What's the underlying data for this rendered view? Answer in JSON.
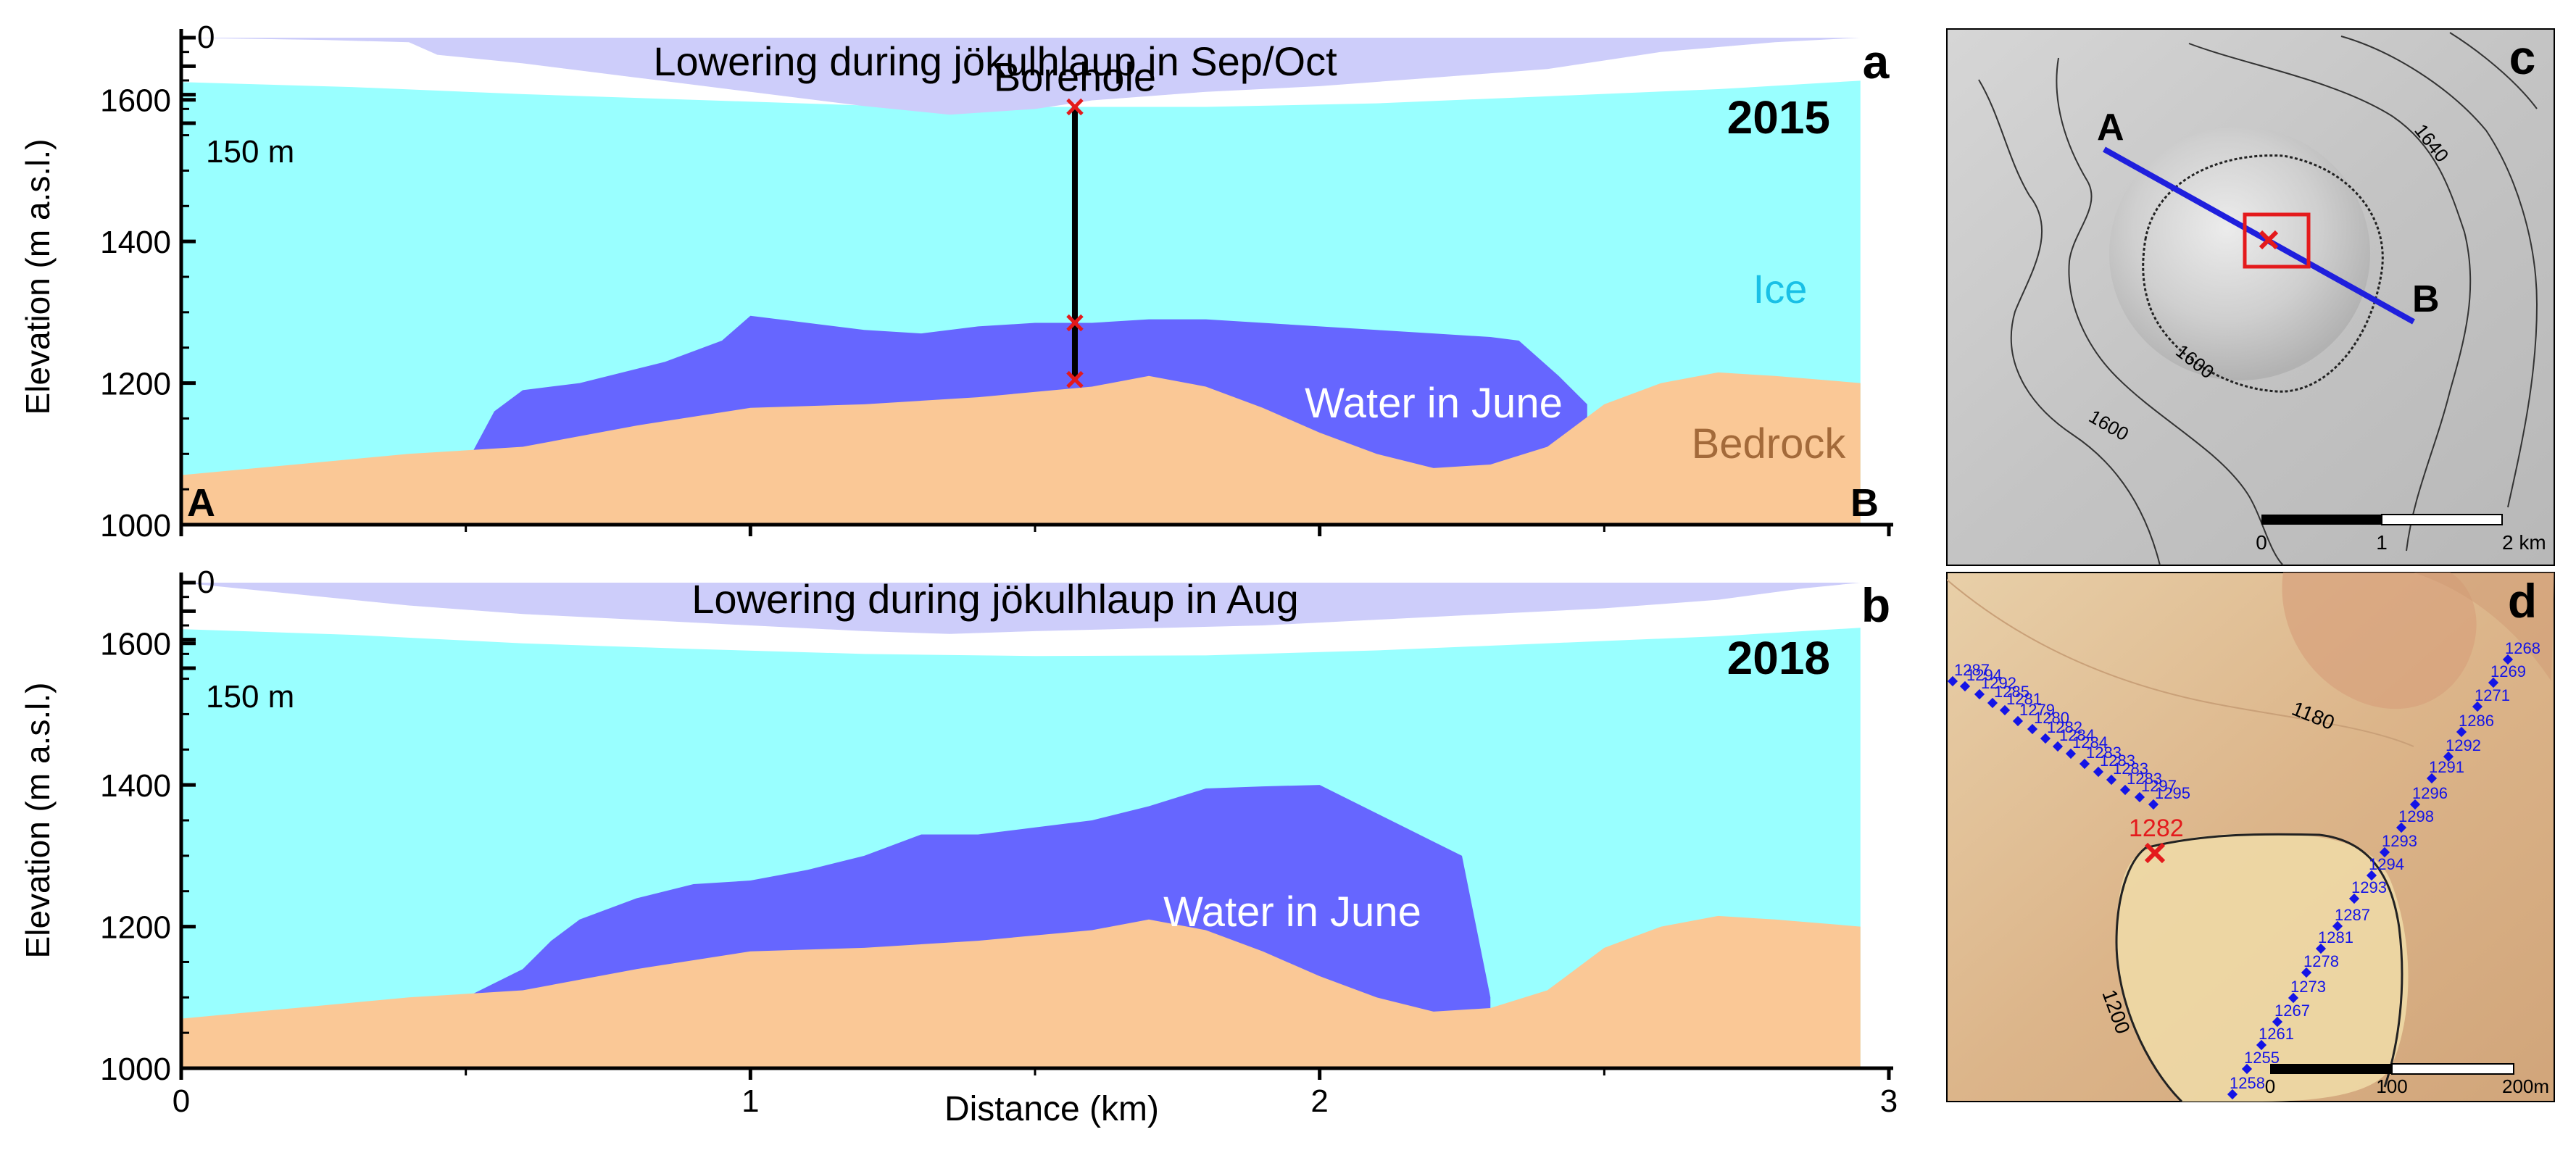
{
  "chart_data": [
    {
      "panel": "a",
      "type": "area",
      "year": "2015",
      "title": "",
      "xlabel": "",
      "ylabel": "Elevation (m a.s.l.)",
      "xlim": [
        0,
        3
      ],
      "ylim": [
        1000,
        1700
      ],
      "x_ticks": [
        "0",
        "1",
        "2",
        "3"
      ],
      "y_ticks": [
        "1000",
        "1200",
        "1400",
        "1600"
      ],
      "lowering_label": "Lowering during jökulhlaup in Sep/Oct",
      "lowering_scale_zero": "0",
      "lowering_scale_label": "150 m",
      "lowering_max_m": 150,
      "lowering": {
        "x": [
          0,
          0.25,
          0.4,
          0.45,
          0.6,
          0.8,
          1.0,
          1.2,
          1.35,
          1.5,
          1.6,
          1.8,
          2.0,
          2.2,
          2.4,
          2.6,
          2.8,
          2.95
        ],
        "depth": [
          0,
          4,
          8,
          30,
          45,
          70,
          95,
          120,
          135,
          125,
          110,
          95,
          85,
          70,
          55,
          25,
          8,
          0
        ]
      },
      "series": [
        {
          "name": "Ice",
          "x": [
            0,
            0.3,
            0.6,
            0.9,
            1.2,
            1.5,
            1.8,
            2.1,
            2.4,
            2.7,
            2.95
          ],
          "values": [
            1625,
            1618,
            1608,
            1600,
            1592,
            1590,
            1590,
            1595,
            1605,
            1615,
            1627
          ]
        },
        {
          "name": "Water in June",
          "x": [
            0.51,
            0.55,
            0.6,
            0.7,
            0.85,
            0.95,
            1.0,
            1.05,
            1.2,
            1.3,
            1.4,
            1.5,
            1.6,
            1.7,
            1.8,
            1.9,
            2.0,
            2.1,
            2.2,
            2.3,
            2.35,
            2.42,
            2.47
          ],
          "values": [
            1100,
            1160,
            1190,
            1200,
            1230,
            1260,
            1295,
            1290,
            1275,
            1270,
            1280,
            1285,
            1285,
            1290,
            1290,
            1285,
            1280,
            1275,
            1270,
            1265,
            1260,
            1210,
            1170
          ]
        },
        {
          "name": "Bedrock",
          "x": [
            0,
            0.2,
            0.4,
            0.6,
            0.8,
            1.0,
            1.2,
            1.4,
            1.6,
            1.7,
            1.8,
            1.9,
            2.0,
            2.1,
            2.2,
            2.3,
            2.4,
            2.5,
            2.6,
            2.7,
            2.8,
            2.95
          ],
          "values": [
            1070,
            1085,
            1100,
            1110,
            1140,
            1165,
            1170,
            1180,
            1195,
            1210,
            1195,
            1165,
            1130,
            1100,
            1080,
            1085,
            1110,
            1170,
            1200,
            1215,
            1210,
            1200
          ]
        }
      ],
      "labels": {
        "ice": "Ice",
        "water": "Water in June",
        "bedrock": "Bedrock",
        "profile_start": "A",
        "profile_end": "B"
      },
      "borehole": {
        "label": "Borehole",
        "x": 1.57,
        "top": 1590,
        "water_top": 1285,
        "bottom": 1205
      },
      "colors": {
        "ice": "#99ffff",
        "water": "#6666ff",
        "bedrock": "#fac896",
        "lowering": "#cdcdfa",
        "marker": "#e41a1c"
      }
    },
    {
      "panel": "b",
      "type": "area",
      "year": "2018",
      "title": "",
      "xlabel": "Distance (km)",
      "ylabel": "Elevation (m a.s.l.)",
      "xlim": [
        0,
        3
      ],
      "ylim": [
        1000,
        1700
      ],
      "x_ticks": [
        "0",
        "1",
        "2",
        "3"
      ],
      "y_ticks": [
        "1000",
        "1200",
        "1400",
        "1600"
      ],
      "lowering_label": "Lowering during jökulhlaup in Aug",
      "lowering_scale_zero": "0",
      "lowering_scale_label": "150 m",
      "lowering_max_m": 150,
      "lowering": {
        "x": [
          0,
          0.2,
          0.4,
          0.6,
          0.8,
          1.0,
          1.2,
          1.35,
          1.5,
          1.7,
          1.9,
          2.1,
          2.3,
          2.5,
          2.7,
          2.85,
          2.95
        ],
        "depth": [
          0,
          20,
          40,
          55,
          65,
          75,
          85,
          90,
          85,
          80,
          75,
          65,
          55,
          45,
          30,
          10,
          0
        ]
      },
      "series": [
        {
          "name": "Ice",
          "x": [
            0,
            0.3,
            0.6,
            0.9,
            1.2,
            1.5,
            1.8,
            2.1,
            2.4,
            2.7,
            2.95
          ],
          "values": [
            1620,
            1612,
            1600,
            1592,
            1585,
            1582,
            1583,
            1590,
            1600,
            1610,
            1622
          ]
        },
        {
          "name": "Water in June",
          "x": [
            0.5,
            0.6,
            0.65,
            0.7,
            0.8,
            0.9,
            1.0,
            1.1,
            1.2,
            1.3,
            1.4,
            1.5,
            1.6,
            1.7,
            1.8,
            1.9,
            2.0,
            2.1,
            2.2,
            2.25,
            2.3
          ],
          "values": [
            1100,
            1140,
            1180,
            1210,
            1240,
            1260,
            1265,
            1280,
            1300,
            1330,
            1330,
            1340,
            1350,
            1370,
            1395,
            1398,
            1400,
            1360,
            1320,
            1300,
            1100
          ]
        },
        {
          "name": "Bedrock",
          "x": [
            0,
            0.2,
            0.4,
            0.6,
            0.8,
            1.0,
            1.2,
            1.4,
            1.6,
            1.7,
            1.8,
            1.9,
            2.0,
            2.1,
            2.2,
            2.3,
            2.4,
            2.5,
            2.6,
            2.7,
            2.8,
            2.95
          ],
          "values": [
            1070,
            1085,
            1100,
            1110,
            1140,
            1165,
            1170,
            1180,
            1195,
            1210,
            1195,
            1165,
            1130,
            1100,
            1080,
            1085,
            1110,
            1170,
            1200,
            1215,
            1210,
            1200
          ]
        }
      ],
      "labels": {
        "water": "Water in June"
      },
      "colors": {
        "ice": "#99ffff",
        "water": "#6666ff",
        "bedrock": "#fac896",
        "lowering": "#cdcdfa"
      }
    }
  ],
  "panels": {
    "a": {
      "letter": "a"
    },
    "b": {
      "letter": "b"
    },
    "c": {
      "letter": "c",
      "point_a": "A",
      "point_b": "B",
      "contour_labels": [
        "1640",
        "1600",
        "1600"
      ],
      "scale_labels": [
        "0",
        "1",
        "2 km"
      ],
      "colors": {
        "hillshade": "#c8c8c8",
        "profile": "#1f1fdd",
        "marker": "#e41a1c"
      }
    },
    "d": {
      "letter": "d",
      "contour_labels": [
        "1180",
        "1200"
      ],
      "borehole_label": "1282",
      "scale_labels": [
        "0",
        "100",
        "200m"
      ],
      "points_descending": {
        "x": [
          0,
          17,
          37,
          55,
          72,
          90,
          110,
          128,
          145,
          163,
          182,
          201,
          219,
          238,
          258,
          277
        ],
        "y": [
          0,
          7,
          18,
          30,
          40,
          55,
          66,
          79,
          90,
          100,
          114,
          125,
          136,
          150,
          160,
          170
        ],
        "values": [
          "1287",
          "1294",
          "1292",
          "1285",
          "1281",
          "1279",
          "1280",
          "1282",
          "1284",
          "1284",
          "1283",
          "1283",
          "1283",
          "1283",
          "1297",
          "1295"
        ]
      },
      "points_ascending": {
        "x": [
          0,
          20,
          40,
          62,
          84,
          102,
          122,
          145,
          168,
          192,
          210,
          233,
          252,
          275,
          298,
          316,
          338,
          360,
          380
        ],
        "y": [
          0,
          -35,
          -68,
          -100,
          -133,
          -168,
          -201,
          -232,
          -270,
          -302,
          -334,
          -368,
          -400,
          -436,
          -466,
          -500,
          -535,
          -568,
          -600
        ],
        "values": [
          "1258",
          "1255",
          "1261",
          "1267",
          "1273",
          "1278",
          "1281",
          "1287",
          "1293",
          "1294",
          "1293",
          "1298",
          "1296",
          "1291",
          "1292",
          "1286",
          "1271",
          "1269",
          "1268"
        ]
      },
      "colors": {
        "base": "#dcb58a",
        "lake": "#f0dca8",
        "points": "#1414e6",
        "marker": "#e41a1c"
      }
    }
  }
}
